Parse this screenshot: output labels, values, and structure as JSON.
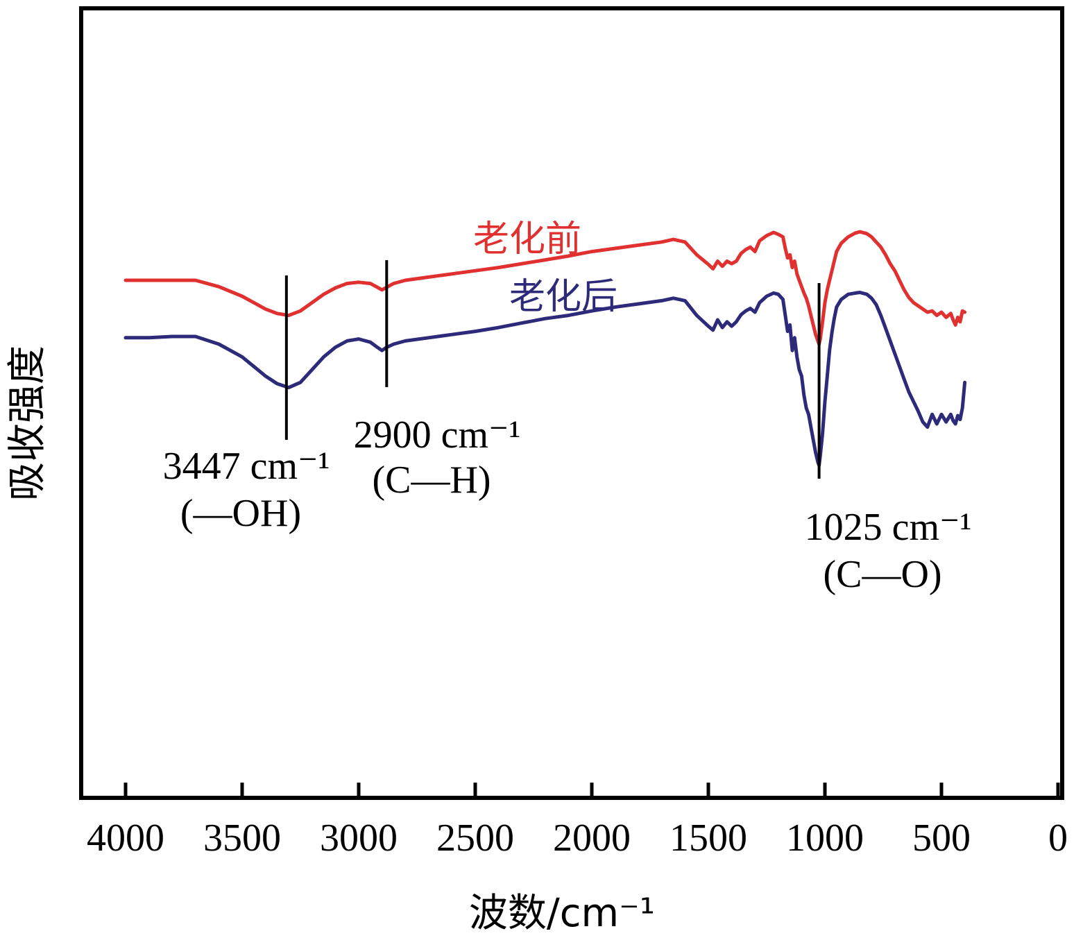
{
  "chart_data": {
    "type": "line",
    "xlabel": "波数/cm⁻¹",
    "ylabel": "吸收强度",
    "xlim": [
      4200,
      0
    ],
    "x_reversed": true,
    "xticks": [
      4000,
      3500,
      3000,
      2500,
      2000,
      1500,
      1000,
      500,
      0
    ],
    "xtick_labels": [
      "4000",
      "3500",
      "3000",
      "2500",
      "2000",
      "1500",
      "1000",
      "500",
      "0"
    ],
    "ylim": [
      0,
      1
    ],
    "yticks": [],
    "grid": false,
    "series": [
      {
        "name": "老化前",
        "color": "#e03030",
        "x": [
          4000,
          3900,
          3800,
          3700,
          3600,
          3500,
          3450,
          3400,
          3350,
          3300,
          3250,
          3200,
          3150,
          3100,
          3050,
          3000,
          2950,
          2920,
          2900,
          2880,
          2850,
          2800,
          2700,
          2600,
          2500,
          2400,
          2300,
          2200,
          2100,
          2000,
          1900,
          1800,
          1700,
          1650,
          1600,
          1550,
          1500,
          1480,
          1460,
          1440,
          1420,
          1400,
          1380,
          1360,
          1340,
          1320,
          1300,
          1280,
          1250,
          1220,
          1200,
          1180,
          1170,
          1160,
          1150,
          1140,
          1130,
          1120,
          1110,
          1100,
          1090,
          1080,
          1070,
          1060,
          1050,
          1040,
          1030,
          1025,
          1020,
          1010,
          1000,
          990,
          980,
          970,
          960,
          950,
          930,
          900,
          870,
          850,
          820,
          800,
          780,
          760,
          740,
          720,
          700,
          680,
          660,
          640,
          620,
          600,
          580,
          560,
          540,
          520,
          500,
          480,
          460,
          450,
          440,
          430,
          420,
          410,
          400
        ],
        "y": [
          0.8,
          0.8,
          0.8,
          0.8,
          0.79,
          0.775,
          0.765,
          0.755,
          0.748,
          0.745,
          0.752,
          0.765,
          0.778,
          0.788,
          0.795,
          0.797,
          0.795,
          0.789,
          0.785,
          0.789,
          0.795,
          0.8,
          0.805,
          0.81,
          0.815,
          0.82,
          0.826,
          0.832,
          0.838,
          0.845,
          0.85,
          0.855,
          0.86,
          0.864,
          0.86,
          0.84,
          0.825,
          0.818,
          0.83,
          0.822,
          0.83,
          0.826,
          0.83,
          0.842,
          0.848,
          0.852,
          0.845,
          0.862,
          0.87,
          0.875,
          0.872,
          0.868,
          0.85,
          0.835,
          0.84,
          0.82,
          0.83,
          0.81,
          0.8,
          0.79,
          0.78,
          0.772,
          0.76,
          0.745,
          0.73,
          0.715,
          0.705,
          0.7,
          0.708,
          0.735,
          0.765,
          0.785,
          0.8,
          0.815,
          0.83,
          0.845,
          0.858,
          0.868,
          0.874,
          0.876,
          0.873,
          0.868,
          0.86,
          0.852,
          0.84,
          0.826,
          0.815,
          0.8,
          0.785,
          0.773,
          0.765,
          0.76,
          0.755,
          0.75,
          0.752,
          0.745,
          0.75,
          0.742,
          0.748,
          0.738,
          0.73,
          0.742,
          0.735,
          0.752,
          0.75
        ]
      },
      {
        "name": "老化后",
        "color": "#2e2a7a",
        "x": [
          4000,
          3900,
          3800,
          3700,
          3600,
          3500,
          3450,
          3400,
          3350,
          3300,
          3250,
          3200,
          3150,
          3100,
          3050,
          3000,
          2950,
          2920,
          2900,
          2880,
          2850,
          2800,
          2700,
          2600,
          2500,
          2400,
          2300,
          2200,
          2100,
          2000,
          1900,
          1800,
          1700,
          1650,
          1600,
          1550,
          1500,
          1480,
          1460,
          1440,
          1420,
          1400,
          1380,
          1360,
          1340,
          1320,
          1300,
          1280,
          1250,
          1220,
          1200,
          1180,
          1170,
          1160,
          1150,
          1140,
          1130,
          1120,
          1110,
          1100,
          1090,
          1080,
          1070,
          1060,
          1050,
          1040,
          1030,
          1025,
          1020,
          1010,
          1000,
          990,
          980,
          970,
          960,
          950,
          930,
          900,
          870,
          850,
          820,
          800,
          780,
          760,
          740,
          720,
          700,
          680,
          660,
          640,
          620,
          600,
          580,
          560,
          540,
          520,
          500,
          480,
          460,
          450,
          440,
          430,
          420,
          410,
          400
        ],
        "y": [
          0.71,
          0.71,
          0.712,
          0.712,
          0.7,
          0.68,
          0.665,
          0.65,
          0.638,
          0.632,
          0.64,
          0.66,
          0.68,
          0.695,
          0.705,
          0.708,
          0.703,
          0.695,
          0.69,
          0.695,
          0.7,
          0.705,
          0.71,
          0.715,
          0.72,
          0.726,
          0.733,
          0.74,
          0.745,
          0.752,
          0.758,
          0.763,
          0.768,
          0.772,
          0.768,
          0.745,
          0.728,
          0.722,
          0.738,
          0.726,
          0.735,
          0.728,
          0.735,
          0.746,
          0.752,
          0.756,
          0.75,
          0.765,
          0.775,
          0.78,
          0.778,
          0.77,
          0.745,
          0.72,
          0.73,
          0.69,
          0.71,
          0.68,
          0.66,
          0.65,
          0.62,
          0.6,
          0.59,
          0.57,
          0.55,
          0.53,
          0.515,
          0.51,
          0.525,
          0.56,
          0.61,
          0.65,
          0.69,
          0.718,
          0.74,
          0.758,
          0.77,
          0.778,
          0.78,
          0.781,
          0.778,
          0.772,
          0.762,
          0.745,
          0.725,
          0.705,
          0.685,
          0.665,
          0.645,
          0.625,
          0.61,
          0.595,
          0.578,
          0.57,
          0.59,
          0.575,
          0.59,
          0.578,
          0.59,
          0.58,
          0.575,
          0.588,
          0.582,
          0.6,
          0.64
        ]
      }
    ],
    "series_labels": [
      {
        "text": "老化前",
        "color": "#e03030"
      },
      {
        "text": "老化后",
        "color": "#2e2a7a"
      }
    ],
    "annotations": [
      {
        "x": 3310,
        "line": "3447 cm⁻¹",
        "group": "(—OH)"
      },
      {
        "x": 2880,
        "line": "2900 cm⁻¹",
        "group": "(C—H)"
      },
      {
        "x": 1025,
        "line": "1025 cm⁻¹",
        "group": "(C—O)"
      }
    ]
  }
}
